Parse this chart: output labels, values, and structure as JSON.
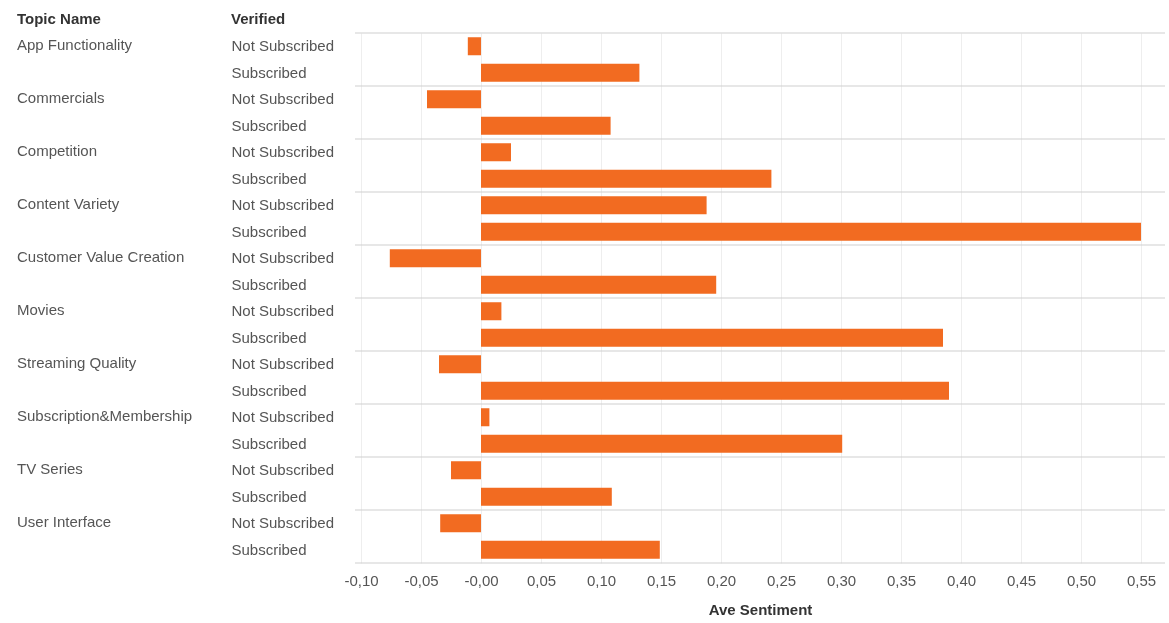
{
  "chart_data": {
    "type": "bar",
    "orientation": "horizontal",
    "xlabel": "Ave Sentiment",
    "grid": "x",
    "color": "#f26b21",
    "annotations": [
      "Topic Name",
      "Verified",
      "App Functionality",
      "Commercials",
      "Competition",
      "Content Variety",
      "Customer Value Creation",
      "Movies",
      "Streaming Quality",
      "Subscription&Membership",
      "TV Series",
      "User Interface"
    ],
    "categories": [
      "Not Subscribed",
      "Subscribed",
      "Not Subscribed",
      "Subscribed",
      "Not Subscribed",
      "Subscribed",
      "Not Subscribed",
      "Subscribed",
      "Not Subscribed",
      "Subscribed",
      "Not Subscribed",
      "Subscribed",
      "Not Subscribed",
      "Subscribed",
      "Not Subscribed",
      "Subscribed",
      "Not Subscribed",
      "Subscribed",
      "Not Subscribed",
      "Subscribed"
    ],
    "values": [
      -0.011,
      0.132,
      -0.045,
      0.108,
      0.025,
      0.242,
      0.188,
      0.55,
      -0.076,
      0.196,
      0.017,
      0.385,
      -0.035,
      0.39,
      0.007,
      0.301,
      -0.025,
      0.109,
      -0.034,
      0.149
    ],
    "xlim": [
      -0.105,
      0.57
    ],
    "xticks": [
      {
        "value": -0.1,
        "label": "-0,10"
      },
      {
        "value": -0.05,
        "label": "-0,05"
      },
      {
        "value": 0,
        "label": "-0,00"
      },
      {
        "value": 0.05,
        "label": "0,05"
      },
      {
        "value": 0.1,
        "label": "0,10"
      },
      {
        "value": 0.15,
        "label": "0,15"
      },
      {
        "value": 0.2,
        "label": "0,20"
      },
      {
        "value": 0.25,
        "label": "0,25"
      },
      {
        "value": 0.3,
        "label": "0,30"
      },
      {
        "value": 0.35,
        "label": "0,35"
      },
      {
        "value": 0.4,
        "label": "0,40"
      },
      {
        "value": 0.45,
        "label": "0,45"
      },
      {
        "value": 0.5,
        "label": "0,50"
      },
      {
        "value": 0.55,
        "label": "0,55"
      }
    ]
  }
}
